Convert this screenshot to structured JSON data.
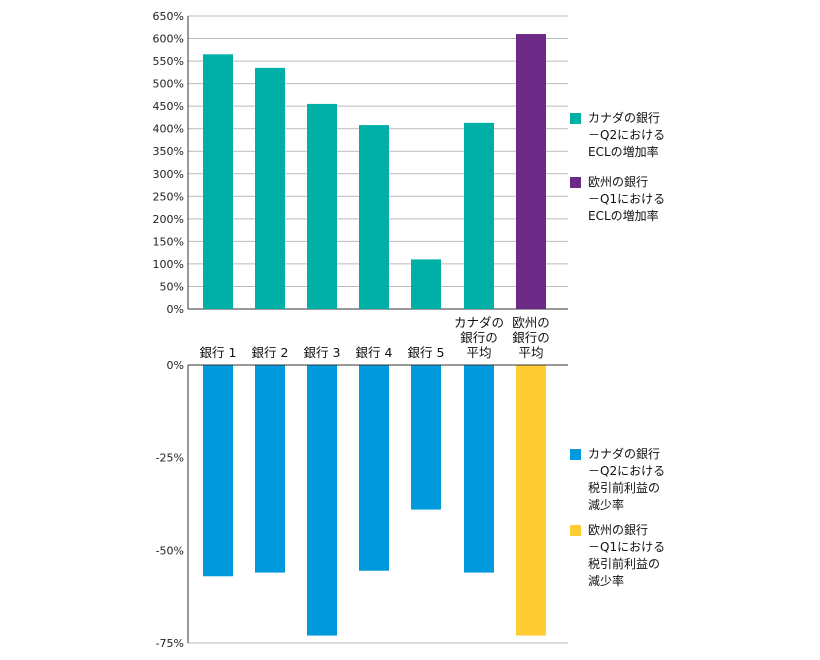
{
  "chart_data": [
    {
      "type": "bar",
      "title": "",
      "ylabel": "",
      "xlabel": "",
      "ylim": [
        0,
        650
      ],
      "yticks": [
        "0%",
        "50%",
        "100%",
        "150%",
        "200%",
        "250%",
        "300%",
        "350%",
        "400%",
        "450%",
        "500%",
        "550%",
        "600%",
        "650%"
      ],
      "categories": [
        "銀行 1",
        "銀行 2",
        "銀行 3",
        "銀行 4",
        "銀行 5",
        "カナダの\n銀行の\n平均",
        "欧州の\n銀行の\n平均"
      ],
      "values": [
        565,
        535,
        455,
        408,
        110,
        413,
        610
      ],
      "series": [
        {
          "name": "カナダの銀行\n－Q2における\nECLの増加率",
          "color": "#00b0a6"
        },
        {
          "name": "欧州の銀行\n－Q1における\nECLの増加率",
          "color": "#6c2a86"
        }
      ],
      "bar_series": [
        0,
        0,
        0,
        0,
        0,
        0,
        1
      ],
      "legend": "right",
      "grid": true
    },
    {
      "type": "bar",
      "title": "",
      "ylabel": "",
      "xlabel": "",
      "ylim": [
        -75,
        0
      ],
      "yticks": [
        "0%",
        "-25%",
        "-50%",
        "-75%"
      ],
      "values": [
        -57,
        -56,
        -73,
        -55.5,
        -39,
        -56,
        -73
      ],
      "series": [
        {
          "name": "カナダの銀行\n－Q2における\n税引前利益の\n減少率",
          "color": "#0099dc"
        },
        {
          "name": "欧州の銀行\n－Q1における\n税引前利益の\n減少率",
          "color": "#ffcc33"
        }
      ],
      "bar_series": [
        0,
        0,
        0,
        0,
        0,
        0,
        1
      ],
      "legend": "right",
      "grid": false
    }
  ]
}
